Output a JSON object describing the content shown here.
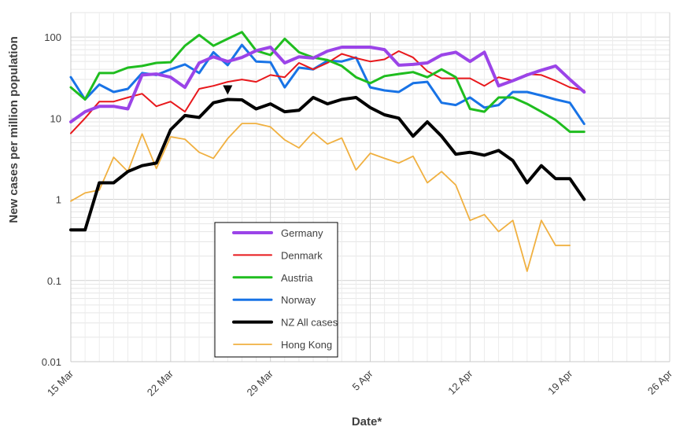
{
  "chart_data": {
    "type": "line",
    "title": "",
    "xlabel": "Date*",
    "ylabel": "New cases per million population",
    "y_scale": "log",
    "ylim": [
      0.01,
      200
    ],
    "xlim": [
      "2020-03-15",
      "2020-04-26"
    ],
    "y_ticks": [
      "0.01",
      "0.1",
      "1",
      "10",
      "100"
    ],
    "x_ticks": [
      "15 Mar",
      "22 Mar",
      "29 Mar",
      "5 Apr",
      "12 Apr",
      "19 Apr",
      "26 Apr"
    ],
    "grid": true,
    "legend_position": "bottom-left",
    "x": [
      "2020-03-15",
      "2020-03-16",
      "2020-03-17",
      "2020-03-18",
      "2020-03-19",
      "2020-03-20",
      "2020-03-21",
      "2020-03-22",
      "2020-03-23",
      "2020-03-24",
      "2020-03-25",
      "2020-03-26",
      "2020-03-27",
      "2020-03-28",
      "2020-03-29",
      "2020-03-30",
      "2020-03-31",
      "2020-04-01",
      "2020-04-02",
      "2020-04-03",
      "2020-04-04",
      "2020-04-05",
      "2020-04-06",
      "2020-04-07",
      "2020-04-08",
      "2020-04-09",
      "2020-04-10",
      "2020-04-11",
      "2020-04-12",
      "2020-04-13",
      "2020-04-14",
      "2020-04-15",
      "2020-04-16",
      "2020-04-17",
      "2020-04-18",
      "2020-04-19",
      "2020-04-20"
    ],
    "series": [
      {
        "name": "Germany",
        "color": "#9b44e8",
        "width": 4,
        "values": [
          9,
          12,
          14,
          14,
          13,
          34,
          35,
          32,
          24,
          48,
          57,
          50,
          56,
          68,
          75,
          48,
          57,
          55,
          67,
          75,
          75,
          75,
          70,
          45,
          46,
          48,
          60,
          65,
          50,
          65,
          25,
          29,
          34,
          39,
          44,
          30,
          21
        ]
      },
      {
        "name": "Denmark",
        "color": "#e8181c",
        "width": 2,
        "values": [
          6.5,
          10,
          16,
          16,
          18,
          20,
          14,
          16,
          12,
          23,
          25,
          28,
          30,
          28,
          34,
          32,
          48,
          40,
          48,
          62,
          55,
          50,
          53,
          67,
          56,
          38,
          31,
          31,
          31,
          25,
          32,
          29,
          35,
          34,
          29,
          24,
          22
        ]
      },
      {
        "name": "Austria",
        "color": "#1fbd1f",
        "width": 3,
        "values": [
          24,
          17,
          36,
          36,
          42,
          44,
          48,
          49,
          78,
          106,
          78,
          95,
          115,
          68,
          60,
          95,
          65,
          56,
          52,
          44,
          32,
          27,
          33,
          35,
          37,
          32,
          40,
          32,
          13,
          12,
          18,
          18,
          15,
          12,
          9.5,
          6.8,
          6.8
        ]
      },
      {
        "name": "Norway",
        "color": "#1873e6",
        "width": 3,
        "values": [
          32,
          17,
          26,
          21,
          23,
          36,
          34,
          40,
          46,
          36,
          65,
          45,
          80,
          50,
          49,
          24,
          42,
          40,
          51,
          50,
          56,
          24,
          22,
          21,
          27,
          28,
          15.5,
          14.5,
          18,
          13.5,
          14.5,
          21,
          21,
          19,
          17,
          15.5,
          8.5
        ]
      },
      {
        "name": "NZ All cases",
        "color": "#000000",
        "width": 4,
        "values": [
          0.42,
          0.42,
          1.6,
          1.6,
          2.2,
          2.6,
          2.8,
          7.2,
          10.8,
          10.2,
          15.5,
          17,
          16.8,
          13,
          15,
          12,
          12.5,
          18,
          15,
          17,
          18,
          13.5,
          11,
          10,
          6,
          9,
          6,
          3.6,
          3.8,
          3.5,
          4,
          3,
          1.6,
          2.6,
          1.8,
          1.8,
          1
        ]
      },
      {
        "name": "Hong Kong",
        "color": "#f0b040",
        "width": 1.8,
        "values": [
          0.95,
          1.2,
          1.3,
          3.3,
          2.2,
          6.4,
          2.4,
          5.9,
          5.5,
          3.8,
          3.2,
          5.6,
          8.6,
          8.6,
          7.8,
          5.4,
          4.3,
          6.7,
          4.8,
          5.7,
          2.3,
          3.7,
          3.2,
          2.8,
          3.4,
          1.6,
          2.2,
          1.5,
          0.55,
          0.65,
          0.4,
          0.55,
          0.13,
          0.55,
          0.27,
          0.27,
          null
        ]
      }
    ]
  }
}
